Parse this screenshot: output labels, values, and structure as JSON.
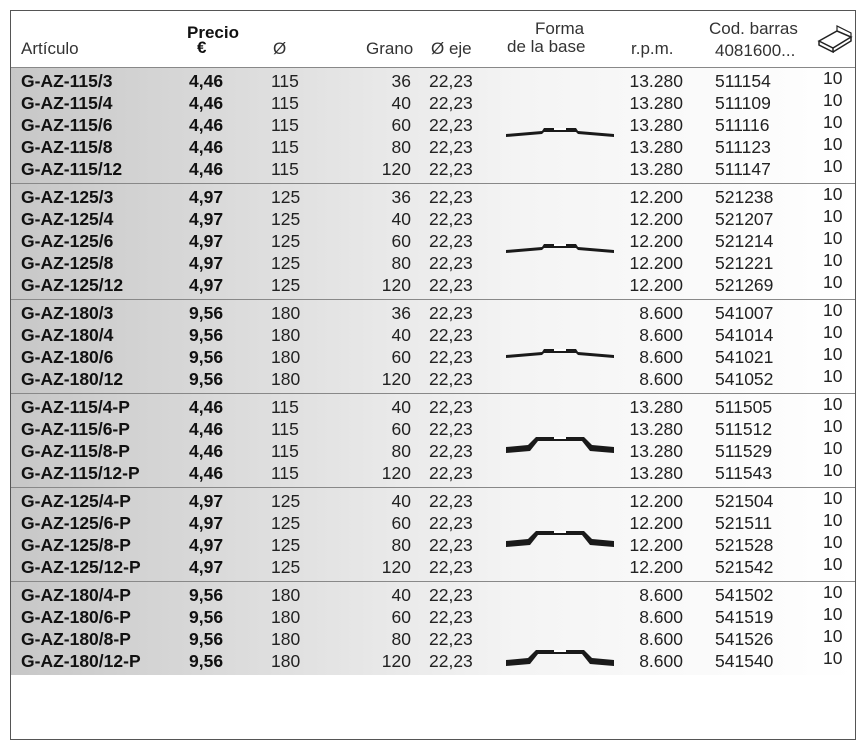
{
  "header": {
    "articulo": "Artículo",
    "precio": "Precio",
    "euro": "€",
    "diametro": "Ø",
    "grano": "Grano",
    "eje": "Ø eje",
    "forma_line1": "Forma",
    "forma_line2": "de la base",
    "rpm": "r.p.m.",
    "cod_line1": "Cod. barras",
    "cod_line2": "4081600...",
    "box_icon": "box-icon"
  },
  "groups": [
    {
      "shape": "flat",
      "rows": [
        {
          "articulo": "G-AZ-115/3",
          "precio": "4,46",
          "diametro": "115",
          "grano": "36",
          "eje": "22,23",
          "rpm": "13.280",
          "cod": "511154",
          "qty": "10"
        },
        {
          "articulo": "G-AZ-115/4",
          "precio": "4,46",
          "diametro": "115",
          "grano": "40",
          "eje": "22,23",
          "rpm": "13.280",
          "cod": "511109",
          "qty": "10"
        },
        {
          "articulo": "G-AZ-115/6",
          "precio": "4,46",
          "diametro": "115",
          "grano": "60",
          "eje": "22,23",
          "rpm": "13.280",
          "cod": "511116",
          "qty": "10"
        },
        {
          "articulo": "G-AZ-115/8",
          "precio": "4,46",
          "diametro": "115",
          "grano": "80",
          "eje": "22,23",
          "rpm": "13.280",
          "cod": "511123",
          "qty": "10"
        },
        {
          "articulo": "G-AZ-115/12",
          "precio": "4,46",
          "diametro": "115",
          "grano": "120",
          "eje": "22,23",
          "rpm": "13.280",
          "cod": "511147",
          "qty": "10"
        }
      ]
    },
    {
      "shape": "flat",
      "rows": [
        {
          "articulo": "G-AZ-125/3",
          "precio": "4,97",
          "diametro": "125",
          "grano": "36",
          "eje": "22,23",
          "rpm": "12.200",
          "cod": "521238",
          "qty": "10"
        },
        {
          "articulo": "G-AZ-125/4",
          "precio": "4,97",
          "diametro": "125",
          "grano": "40",
          "eje": "22,23",
          "rpm": "12.200",
          "cod": "521207",
          "qty": "10"
        },
        {
          "articulo": "G-AZ-125/6",
          "precio": "4,97",
          "diametro": "125",
          "grano": "60",
          "eje": "22,23",
          "rpm": "12.200",
          "cod": "521214",
          "qty": "10"
        },
        {
          "articulo": "G-AZ-125/8",
          "precio": "4,97",
          "diametro": "125",
          "grano": "80",
          "eje": "22,23",
          "rpm": "12.200",
          "cod": "521221",
          "qty": "10"
        },
        {
          "articulo": "G-AZ-125/12",
          "precio": "4,97",
          "diametro": "125",
          "grano": "120",
          "eje": "22,23",
          "rpm": "12.200",
          "cod": "521269",
          "qty": "10"
        }
      ]
    },
    {
      "shape": "flat",
      "rows": [
        {
          "articulo": "G-AZ-180/3",
          "precio": "9,56",
          "diametro": "180",
          "grano": "36",
          "eje": "22,23",
          "rpm": "8.600",
          "cod": "541007",
          "qty": "10"
        },
        {
          "articulo": "G-AZ-180/4",
          "precio": "9,56",
          "diametro": "180",
          "grano": "40",
          "eje": "22,23",
          "rpm": "8.600",
          "cod": "541014",
          "qty": "10"
        },
        {
          "articulo": "G-AZ-180/6",
          "precio": "9,56",
          "diametro": "180",
          "grano": "60",
          "eje": "22,23",
          "rpm": "8.600",
          "cod": "541021",
          "qty": "10"
        },
        {
          "articulo": "G-AZ-180/12",
          "precio": "9,56",
          "diametro": "180",
          "grano": "120",
          "eje": "22,23",
          "rpm": "8.600",
          "cod": "541052",
          "qty": "10"
        }
      ]
    },
    {
      "shape": "raised",
      "rows": [
        {
          "articulo": "G-AZ-115/4-P",
          "precio": "4,46",
          "diametro": "115",
          "grano": "40",
          "eje": "22,23",
          "rpm": "13.280",
          "cod": "511505",
          "qty": "10"
        },
        {
          "articulo": "G-AZ-115/6-P",
          "precio": "4,46",
          "diametro": "115",
          "grano": "60",
          "eje": "22,23",
          "rpm": "13.280",
          "cod": "511512",
          "qty": "10"
        },
        {
          "articulo": "G-AZ-115/8-P",
          "precio": "4,46",
          "diametro": "115",
          "grano": "80",
          "eje": "22,23",
          "rpm": "13.280",
          "cod": "511529",
          "qty": "10"
        },
        {
          "articulo": "G-AZ-115/12-P",
          "precio": "4,46",
          "diametro": "115",
          "grano": "120",
          "eje": "22,23",
          "rpm": "13.280",
          "cod": "511543",
          "qty": "10"
        }
      ]
    },
    {
      "shape": "raised",
      "rows": [
        {
          "articulo": "G-AZ-125/4-P",
          "precio": "4,97",
          "diametro": "125",
          "grano": "40",
          "eje": "22,23",
          "rpm": "12.200",
          "cod": "521504",
          "qty": "10"
        },
        {
          "articulo": "G-AZ-125/6-P",
          "precio": "4,97",
          "diametro": "125",
          "grano": "60",
          "eje": "22,23",
          "rpm": "12.200",
          "cod": "521511",
          "qty": "10"
        },
        {
          "articulo": "G-AZ-125/8-P",
          "precio": "4,97",
          "diametro": "125",
          "grano": "80",
          "eje": "22,23",
          "rpm": "12.200",
          "cod": "521528",
          "qty": "10"
        },
        {
          "articulo": "G-AZ-125/12-P",
          "precio": "4,97",
          "diametro": "125",
          "grano": "120",
          "eje": "22,23",
          "rpm": "12.200",
          "cod": "521542",
          "qty": "10"
        }
      ]
    },
    {
      "shape": "raised",
      "rows": [
        {
          "articulo": "G-AZ-180/4-P",
          "precio": "9,56",
          "diametro": "180",
          "grano": "40",
          "eje": "22,23",
          "rpm": "8.600",
          "cod": "541502",
          "qty": "10"
        },
        {
          "articulo": "G-AZ-180/6-P",
          "precio": "9,56",
          "diametro": "180",
          "grano": "60",
          "eje": "22,23",
          "rpm": "8.600",
          "cod": "541519",
          "qty": "10"
        },
        {
          "articulo": "G-AZ-180/8-P",
          "precio": "9,56",
          "diametro": "180",
          "grano": "80",
          "eje": "22,23",
          "rpm": "8.600",
          "cod": "541526",
          "qty": "10"
        },
        {
          "articulo": "G-AZ-180/12-P",
          "precio": "9,56",
          "diametro": "180",
          "grano": "120",
          "eje": "22,23",
          "rpm": "8.600",
          "cod": "541540",
          "qty": "10"
        }
      ]
    }
  ]
}
